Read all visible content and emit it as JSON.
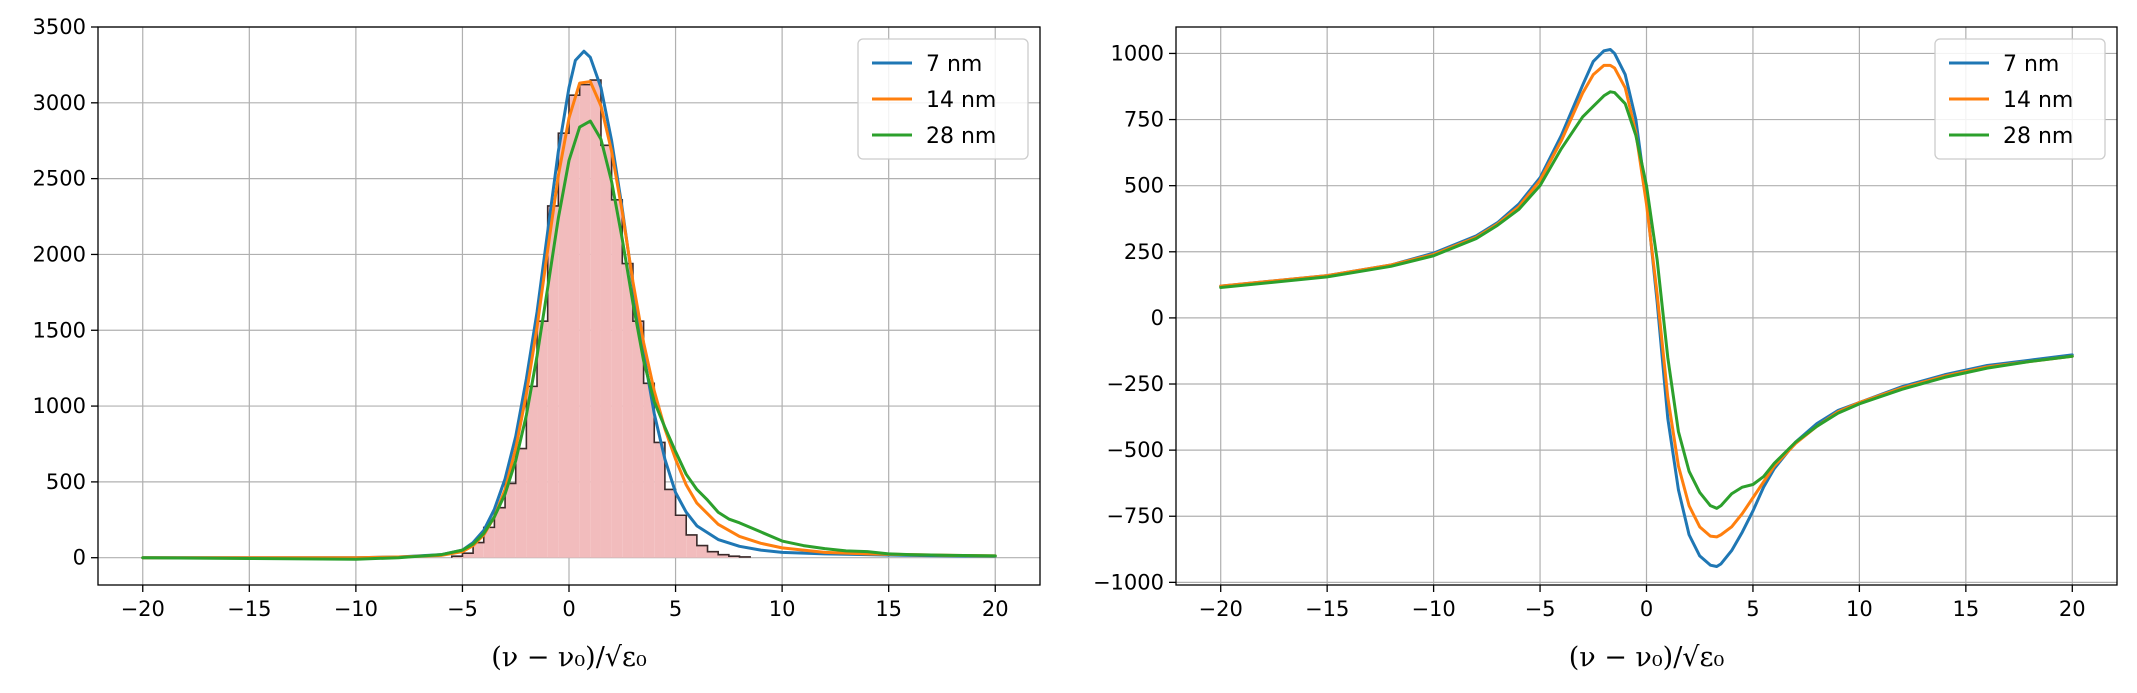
{
  "chart_data": [
    {
      "type": "line",
      "xlabel": "(ν − ν₀)/√ε₀",
      "xlim": [
        -22.1,
        22.1
      ],
      "ylim": [
        -180,
        3500
      ],
      "x_ticks": [
        -20,
        -15,
        -10,
        -5,
        0,
        5,
        10,
        15,
        20
      ],
      "y_ticks": [
        0,
        500,
        1000,
        1500,
        2000,
        2500,
        3000,
        3500
      ],
      "grid": true,
      "legend": "top-right",
      "series": [
        {
          "name": "7 nm",
          "color": "#1f77b4",
          "x": [
            -20,
            -15,
            -10,
            -8,
            -6,
            -5,
            -4.5,
            -4,
            -3.5,
            -3,
            -2.5,
            -2,
            -1.5,
            -1,
            -0.5,
            0,
            0.3,
            0.7,
            1,
            1.5,
            2,
            2.5,
            3,
            3.5,
            4,
            4.5,
            5,
            5.5,
            6,
            7,
            8,
            9,
            10,
            12,
            14,
            16,
            18,
            20
          ],
          "y": [
            0,
            0,
            0,
            5,
            20,
            50,
            100,
            180,
            320,
            520,
            800,
            1180,
            1620,
            2150,
            2680,
            3100,
            3280,
            3340,
            3300,
            3100,
            2750,
            2300,
            1800,
            1350,
            950,
            650,
            430,
            300,
            210,
            120,
            75,
            50,
            35,
            25,
            20,
            15,
            12,
            10
          ]
        },
        {
          "name": "14 nm",
          "color": "#ff7f0e",
          "x": [
            -20,
            -15,
            -10,
            -8,
            -6,
            -5,
            -4.5,
            -4,
            -3.5,
            -3,
            -2.5,
            -2,
            -1.5,
            -1,
            -0.5,
            0,
            0.5,
            1,
            1.5,
            2,
            2.5,
            3,
            3.5,
            4,
            4.5,
            5,
            5.5,
            6,
            7,
            8,
            9,
            10,
            12,
            14,
            16,
            18,
            20
          ],
          "y": [
            0,
            0,
            0,
            5,
            15,
            40,
            80,
            150,
            270,
            450,
            720,
            1080,
            1520,
            2030,
            2520,
            2900,
            3130,
            3140,
            2980,
            2680,
            2280,
            1820,
            1420,
            1100,
            850,
            650,
            480,
            360,
            220,
            140,
            95,
            65,
            35,
            25,
            20,
            15,
            12
          ]
        },
        {
          "name": "28 nm",
          "color": "#2ca02c",
          "x": [
            -20,
            -15,
            -10,
            -8,
            -7,
            -6,
            -5,
            -4.5,
            -4,
            -3.5,
            -3,
            -2.5,
            -2,
            -1.5,
            -1,
            -0.5,
            0,
            0.5,
            1,
            1.5,
            2,
            2.5,
            3,
            3.5,
            4,
            4.5,
            5,
            5.5,
            6,
            6.5,
            7,
            7.5,
            8,
            9,
            10,
            11,
            12,
            13,
            14,
            15,
            16,
            18,
            20
          ],
          "y": [
            0,
            -5,
            -10,
            0,
            10,
            20,
            50,
            90,
            160,
            270,
            420,
            640,
            940,
            1330,
            1780,
            2240,
            2620,
            2840,
            2880,
            2760,
            2480,
            2100,
            1680,
            1300,
            1030,
            860,
            700,
            550,
            450,
            380,
            300,
            255,
            230,
            170,
            110,
            80,
            60,
            45,
            40,
            25,
            20,
            15,
            12
          ]
        },
        {
          "name": "",
          "type": "histogram",
          "color": "#f2bcbd",
          "edge_color": "#3a2a2a",
          "bin_edges": [
            -5.5,
            -5,
            -4.5,
            -4,
            -3.5,
            -3,
            -2.5,
            -2,
            -1.5,
            -1,
            -0.5,
            0,
            0.5,
            1,
            1.5,
            2,
            2.5,
            3,
            3.5,
            4,
            4.5,
            5,
            5.5,
            6,
            6.5,
            7,
            7.5,
            8,
            8.5
          ],
          "counts": [
            10,
            30,
            100,
            200,
            330,
            490,
            720,
            1130,
            1560,
            2320,
            2800,
            3050,
            3120,
            3150,
            2720,
            2360,
            1940,
            1560,
            1150,
            760,
            450,
            280,
            150,
            80,
            40,
            20,
            10,
            5
          ]
        }
      ]
    },
    {
      "type": "line",
      "xlabel": "(ν − ν₀)/√ε₀",
      "xlim": [
        -22.1,
        22.1
      ],
      "ylim": [
        -1010,
        1100
      ],
      "x_ticks": [
        -20,
        -15,
        -10,
        -5,
        0,
        5,
        10,
        15,
        20
      ],
      "y_ticks": [
        -1000,
        -750,
        -500,
        -250,
        0,
        250,
        500,
        750,
        1000
      ],
      "grid": true,
      "legend": "top-right",
      "series": [
        {
          "name": "7 nm",
          "color": "#1f77b4",
          "x": [
            -20,
            -15,
            -12,
            -10,
            -8,
            -7,
            -6,
            -5,
            -4,
            -3,
            -2.5,
            -2,
            -1.7,
            -1.5,
            -1,
            -0.5,
            0,
            0.5,
            1,
            1.5,
            2,
            2.5,
            3,
            3.3,
            3.5,
            4,
            4.5,
            5,
            5.5,
            6,
            7,
            8,
            9,
            10,
            12,
            14,
            16,
            18,
            20
          ],
          "y": [
            120,
            160,
            200,
            245,
            310,
            360,
            430,
            530,
            690,
            880,
            970,
            1010,
            1015,
            1000,
            920,
            750,
            450,
            60,
            -380,
            -650,
            -820,
            -900,
            -935,
            -940,
            -930,
            -880,
            -810,
            -730,
            -640,
            -570,
            -470,
            -400,
            -350,
            -320,
            -260,
            -215,
            -180,
            -160,
            -140
          ]
        },
        {
          "name": "14 nm",
          "color": "#ff7f0e",
          "x": [
            -20,
            -15,
            -12,
            -10,
            -8,
            -7,
            -6,
            -5,
            -4,
            -3,
            -2.5,
            -2,
            -1.7,
            -1.5,
            -1,
            -0.5,
            0,
            0.5,
            1,
            1.5,
            2,
            2.5,
            3,
            3.3,
            3.5,
            4,
            4.5,
            5,
            5.5,
            6,
            7,
            8,
            9,
            10,
            12,
            14,
            16,
            18,
            20
          ],
          "y": [
            120,
            160,
            200,
            240,
            305,
            355,
            420,
            520,
            670,
            850,
            920,
            955,
            955,
            945,
            870,
            700,
            430,
            90,
            -300,
            -560,
            -710,
            -790,
            -825,
            -828,
            -820,
            -790,
            -740,
            -680,
            -620,
            -560,
            -475,
            -410,
            -355,
            -320,
            -265,
            -220,
            -185,
            -165,
            -145
          ]
        },
        {
          "name": "28 nm",
          "color": "#2ca02c",
          "x": [
            -20,
            -15,
            -12,
            -10,
            -8,
            -7,
            -6,
            -5,
            -4,
            -3,
            -2.5,
            -2,
            -1.7,
            -1.5,
            -1,
            -0.5,
            0,
            0.5,
            1,
            1.5,
            2,
            2.5,
            3,
            3.3,
            3.5,
            4,
            4.5,
            5,
            5.5,
            6,
            7,
            8,
            9,
            10,
            12,
            14,
            16,
            18,
            20
          ],
          "y": [
            115,
            155,
            195,
            235,
            300,
            350,
            410,
            500,
            640,
            760,
            800,
            840,
            855,
            852,
            810,
            690,
            500,
            220,
            -150,
            -430,
            -580,
            -660,
            -710,
            -720,
            -710,
            -665,
            -640,
            -630,
            -600,
            -550,
            -470,
            -410,
            -360,
            -325,
            -270,
            -225,
            -190,
            -165,
            -145
          ]
        }
      ]
    }
  ]
}
